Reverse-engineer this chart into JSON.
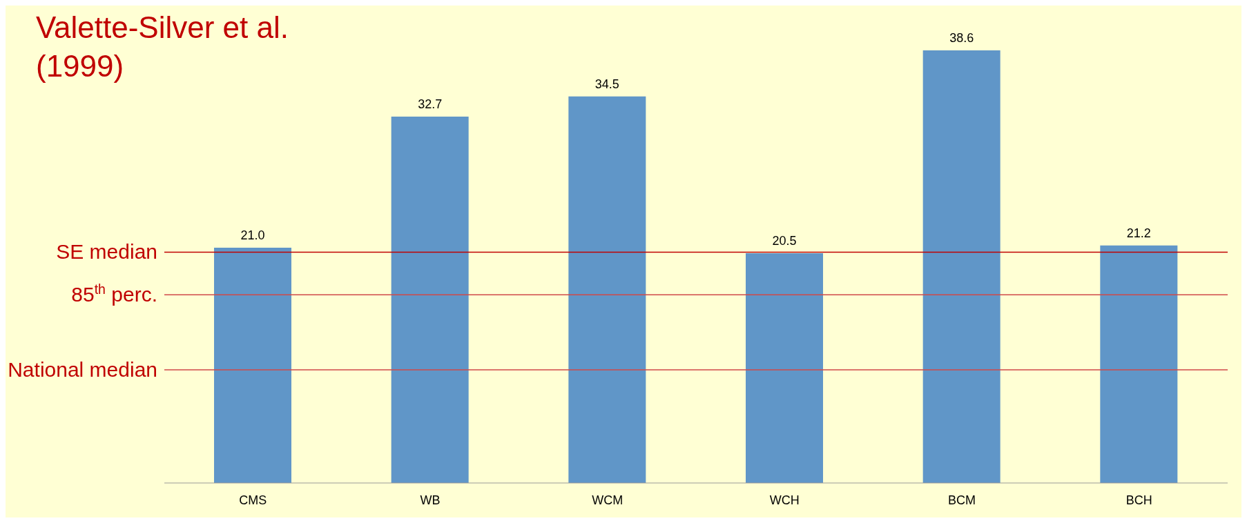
{
  "chart_data": {
    "type": "bar",
    "title": "Valette-Silver et al. (1999)",
    "categories": [
      "CMS",
      "WB",
      "WCM",
      "WCH",
      "BCM",
      "BCH"
    ],
    "values": [
      21.0,
      32.7,
      34.5,
      20.5,
      38.6,
      21.2
    ],
    "color": "#6096c8",
    "value_labels": [
      "21.0",
      "32.7",
      "34.5",
      "20.5",
      "38.6",
      "21.2"
    ],
    "ref_lines": [
      {
        "axis": "y",
        "value": 20.6,
        "label": "SE median",
        "color": "#c00000"
      },
      {
        "axis": "y",
        "value": 16.8,
        "label": "85$^{th}$ perc.",
        "color": "#d04848"
      },
      {
        "axis": "y",
        "value": 10.1,
        "label": "National median",
        "color": "#d04848"
      }
    ]
  }
}
